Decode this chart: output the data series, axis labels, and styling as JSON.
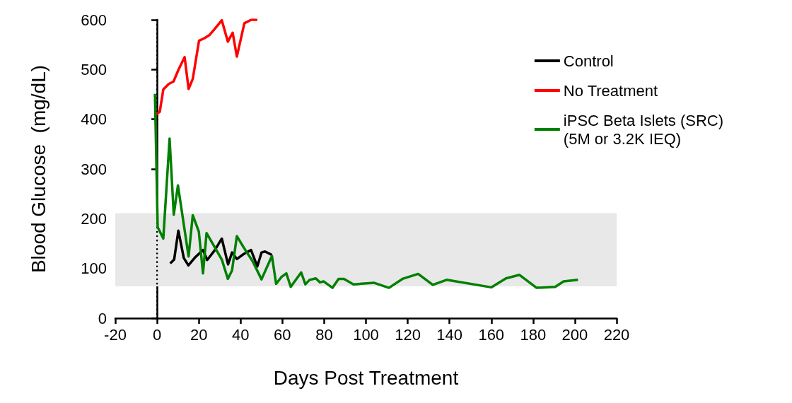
{
  "chart_data": {
    "type": "line",
    "xlabel": "Days Post Treatment",
    "ylabel": "Blood Glucose  (mg/dL)",
    "xlim": [
      -20,
      220
    ],
    "xticks": [
      -20,
      0,
      20,
      40,
      60,
      80,
      100,
      120,
      140,
      160,
      180,
      200,
      220
    ],
    "ylim": [
      0,
      600
    ],
    "yticks": [
      0,
      100,
      200,
      300,
      400,
      500,
      600
    ],
    "grid": false,
    "legend": "top right",
    "marker": "none",
    "line_style": "solid",
    "ref_lines": [
      {
        "axis": "x",
        "value": 0,
        "color": "#000000",
        "line_style": "dotted"
      }
    ],
    "bands": [
      {
        "axis": "y",
        "from": 64,
        "to": 211,
        "color": "#e8e8e8"
      }
    ],
    "series": [
      {
        "name": "Control",
        "color": "#000000",
        "x": [
          6.3,
          8.2,
          10.2,
          12.8,
          15,
          18.4,
          22,
          24,
          27.7,
          31,
          34,
          35.9,
          38.2,
          41.5,
          45,
          48,
          50,
          51.7,
          55
        ],
        "values": [
          110,
          118,
          176,
          121,
          106,
          123,
          137,
          117,
          137,
          160,
          108,
          132,
          119,
          129,
          137,
          104,
          132,
          134,
          127
        ]
      },
      {
        "name": "No Treatment",
        "color": "#ff0000",
        "x": [
          -1,
          1.3,
          3,
          5.6,
          7.9,
          10.2,
          13.2,
          15.1,
          17.1,
          20.1,
          22.7,
          25,
          27.7,
          31,
          33.9,
          36.2,
          38.2,
          41.8,
          45.1,
          48
        ],
        "values": [
          408,
          415,
          460,
          471,
          476,
          499,
          525,
          461,
          481,
          558,
          563,
          569,
          582,
          599,
          556,
          574,
          526,
          593,
          600,
          600
        ]
      },
      {
        "name": "iPSC Beta Islets (SRC)\n(5M or 3.2K IEQ)",
        "color": "#008000",
        "x": [
          -1,
          0.3,
          3,
          6,
          8,
          10,
          15.1,
          17.1,
          20,
          22,
          23.7,
          27.7,
          31,
          33.9,
          35.9,
          38.2,
          41.5,
          45.8,
          50,
          55,
          57,
          59.6,
          61.9,
          64,
          69,
          71,
          73,
          76,
          78,
          79.7,
          84,
          86.9,
          89.5,
          94,
          104,
          111,
          117.5,
          125,
          132,
          138.6,
          160,
          167,
          173.5,
          181.7,
          190.6,
          194.6,
          201.5
        ],
        "values": [
          451,
          183,
          160,
          361,
          208,
          267,
          124,
          207,
          174,
          90,
          171,
          142,
          118,
          79,
          96,
          165,
          142,
          114,
          78,
          125,
          69,
          83,
          90,
          63,
          92,
          68,
          77,
          80,
          72,
          74,
          61,
          79,
          79,
          68,
          71,
          61,
          79,
          89,
          67,
          77,
          62,
          80,
          87,
          61,
          63,
          74,
          77
        ]
      }
    ]
  }
}
